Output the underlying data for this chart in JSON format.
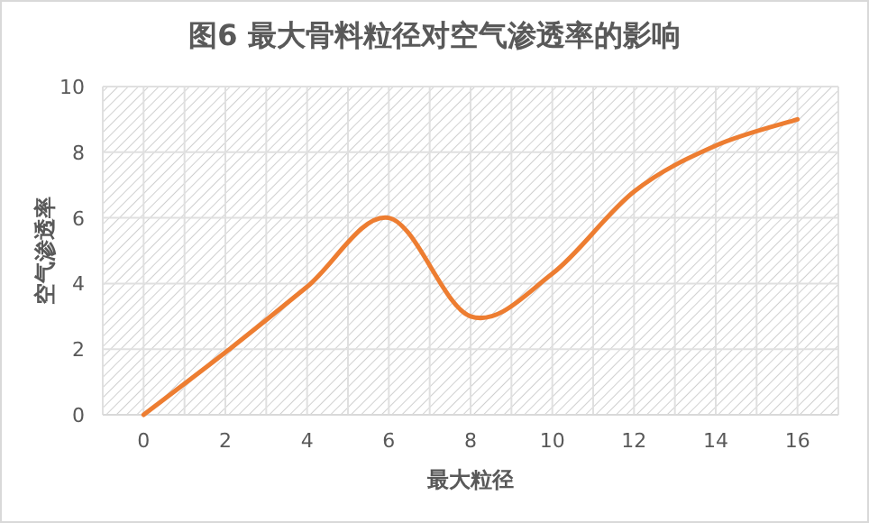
{
  "chart_data": {
    "type": "line",
    "title": "图6  最大骨料粒径对空气渗透率的影响",
    "xlabel": "最大粒径",
    "ylabel": "空气渗透率",
    "x": [
      0,
      2,
      4,
      6,
      8,
      10,
      12,
      14,
      16
    ],
    "series": [
      {
        "color": "#ed7d31",
        "values": [
          0,
          1.9,
          3.9,
          6,
          3,
          4.3,
          6.8,
          8.2,
          9
        ]
      }
    ],
    "xlim": [
      -1,
      17
    ],
    "xticks": [
      {
        "value": -1,
        "label": null
      },
      0,
      {
        "value": 1,
        "label": null
      },
      2,
      {
        "value": 3,
        "label": null
      },
      4,
      {
        "value": 5,
        "label": null
      },
      6,
      {
        "value": 7,
        "label": null
      },
      8,
      {
        "value": 9,
        "label": null
      },
      10,
      {
        "value": 11,
        "label": null
      },
      12,
      {
        "value": 13,
        "label": null
      },
      14,
      {
        "value": 15,
        "label": null
      },
      16,
      {
        "value": 17,
        "label": null
      }
    ],
    "ylim": [
      0,
      10
    ],
    "yticks": [
      0,
      2,
      4,
      6,
      8,
      10
    ],
    "grid": true,
    "marker": "none",
    "line_style": "solid"
  }
}
